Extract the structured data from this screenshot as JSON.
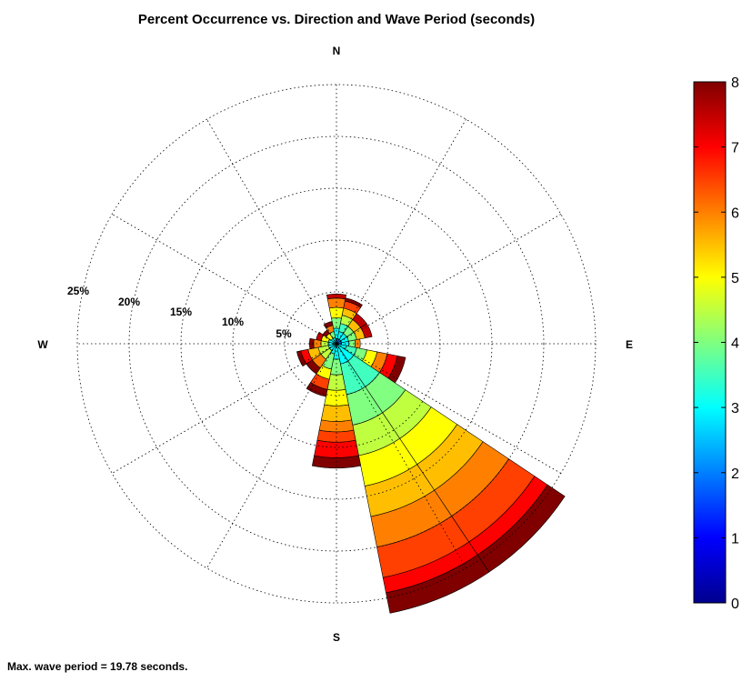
{
  "chart_data": {
    "type": "rose",
    "title": "Percent Occurrence vs. Direction and Wave Period (seconds)",
    "directions": [
      "N",
      "E",
      "S",
      "W"
    ],
    "radial_ticks": [
      "5%",
      "10%",
      "15%",
      "20%",
      "25%"
    ],
    "radial_max": 25,
    "colorbar": {
      "ticks": [
        "0",
        "1",
        "2",
        "3",
        "4",
        "5",
        "6",
        "7",
        "8"
      ],
      "min": 0,
      "max": 8,
      "colormap": "jet"
    },
    "sector_width_deg": 22.5,
    "sectors": [
      {
        "direction_deg": 0,
        "boundaries": [
          0.5,
          1.5,
          2.5,
          3.5,
          4.4,
          4.8
        ],
        "values": [
          2,
          3,
          4,
          5,
          6,
          7.5
        ]
      },
      {
        "direction_deg": 22.5,
        "boundaries": [
          0.5,
          1.2,
          2.0,
          2.8,
          3.5,
          4.2,
          4.5
        ],
        "values": [
          2,
          3,
          3.5,
          4.5,
          5.5,
          6.5,
          8
        ]
      },
      {
        "direction_deg": 45,
        "boundaries": [
          0.5,
          1.2,
          2.0,
          2.8,
          3.5
        ],
        "values": [
          2,
          3,
          4,
          5.5,
          7.5
        ]
      },
      {
        "direction_deg": 67.5,
        "boundaries": [
          0.5,
          1.2,
          2.0,
          2.8,
          3.5
        ],
        "values": [
          2,
          3,
          4,
          5.5,
          7.5
        ]
      },
      {
        "direction_deg": 90,
        "boundaries": [
          0.5,
          1.2,
          1.8,
          2.3
        ],
        "values": [
          2,
          3,
          4,
          6
        ]
      },
      {
        "direction_deg": 112.5,
        "boundaries": [
          1.0,
          2.0,
          3.0,
          4.0,
          5.0,
          6.0,
          6.8
        ],
        "values": [
          3,
          3.5,
          4,
          5,
          6,
          7,
          8
        ]
      },
      {
        "direction_deg": 135,
        "boundaries": [
          2.0,
          5.0,
          8.0,
          11.0,
          14.0,
          17.0,
          20.0,
          23.0,
          24.5,
          26.5
        ],
        "values": [
          3,
          3.5,
          4,
          4.5,
          5,
          5.5,
          6,
          6.5,
          7,
          8
        ]
      },
      {
        "direction_deg": 157.5,
        "boundaries": [
          2.0,
          5.0,
          8.0,
          11.0,
          14.0,
          17.0,
          20.0,
          23.0,
          24.5,
          26.5
        ],
        "values": [
          3,
          3.5,
          4,
          4.5,
          5,
          5.5,
          6,
          6.5,
          7,
          8
        ]
      },
      {
        "direction_deg": 180,
        "boundaries": [
          1.5,
          3.0,
          4.5,
          6.0,
          7.5,
          8.5,
          9.5,
          11.0,
          12.0
        ],
        "values": [
          3,
          4,
          4.5,
          5,
          5.5,
          6,
          6.5,
          7,
          8
        ]
      },
      {
        "direction_deg": 202.5,
        "boundaries": [
          1.0,
          2.5,
          3.5,
          4.5,
          5.2
        ],
        "values": [
          3,
          4,
          5,
          6.5,
          8
        ]
      },
      {
        "direction_deg": 225,
        "boundaries": [
          0.8,
          1.8,
          2.8,
          3.5
        ],
        "values": [
          3,
          4.5,
          6,
          8
        ]
      },
      {
        "direction_deg": 247.5,
        "boundaries": [
          0.8,
          1.8,
          2.8,
          3.5,
          3.9
        ],
        "values": [
          3,
          4.5,
          5.5,
          7,
          8
        ]
      },
      {
        "direction_deg": 270,
        "boundaries": [
          0.8,
          1.5,
          2.2,
          2.6
        ],
        "values": [
          3,
          4.5,
          6,
          8
        ]
      },
      {
        "direction_deg": 292.5,
        "boundaries": [
          0.8,
          1.5,
          2.0
        ],
        "values": [
          3,
          5,
          7.5
        ]
      },
      {
        "direction_deg": 315,
        "boundaries": [
          0.6,
          1.2,
          1.6
        ],
        "values": [
          3,
          5,
          8
        ]
      },
      {
        "direction_deg": 337.5,
        "boundaries": [
          0.6,
          1.2,
          1.8,
          2.2
        ],
        "values": [
          3,
          4,
          6,
          8
        ]
      }
    ]
  },
  "footer_note": "Max. wave period = 19.78 seconds."
}
